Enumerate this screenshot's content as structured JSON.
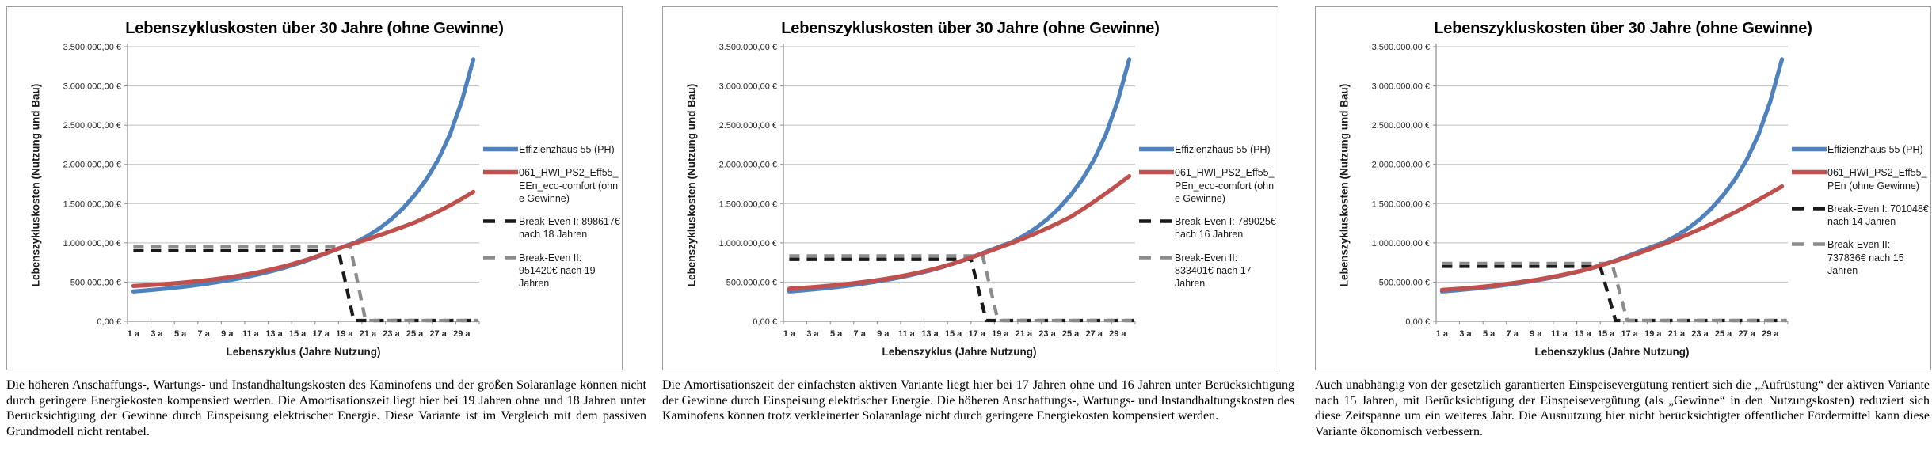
{
  "chart_data": [
    {
      "type": "line",
      "title": "Lebenszykluskosten über 30 Jahre (ohne Gewinne)",
      "y_axis_title": "Lebenszykluskosten (Nutzung und Bau)",
      "x_axis_title": "Lebenszyklus (Jahre Nutzung)",
      "y_max": 3500000,
      "y_ticks": [
        "0,00 €",
        "500.000,00 €",
        "1.000.000,00 €",
        "1.500.000,00 €",
        "2.000.000,00 €",
        "2.500.000,00 €",
        "3.000.000,00 €",
        "3.500.000,00 €"
      ],
      "x_ticks": [
        "1 a",
        "3 a",
        "5 a",
        "7 a",
        "9 a",
        "11 a",
        "13 a",
        "15 a",
        "17 a",
        "19 a",
        "21 a",
        "23 a",
        "25 a",
        "27 a",
        "29 a"
      ],
      "legend_labels": [
        "Effizienzhaus 55 (PH)",
        "061_HWI_PS2_Eff55_EEn_eco-comfort (ohne Gewinne)",
        "Break-Even I: 898617€ nach 18 Jahren",
        "Break-Even II: 951420€ nach 19 Jahren"
      ],
      "series": [
        {
          "name": "Effizienzhaus 55 (PH)",
          "color": "#4F81BD",
          "style": "solid",
          "values": [
            380000,
            392000,
            405000,
            420000,
            436000,
            454000,
            474000,
            496000,
            520000,
            547000,
            577000,
            610000,
            647000,
            688000,
            734000,
            785000,
            840000,
            899000,
            955000,
            1010000,
            1090000,
            1185000,
            1300000,
            1440000,
            1610000,
            1810000,
            2060000,
            2380000,
            2800000,
            3340000
          ]
        },
        {
          "name": "061_HWI_PS2_Eff55_EEn_eco-comfort (ohne Gewinne)",
          "color": "#C0504D",
          "style": "solid",
          "values": [
            450000,
            458000,
            467000,
            478000,
            490000,
            504000,
            520000,
            538000,
            558000,
            581000,
            607000,
            636000,
            669000,
            706000,
            748000,
            795000,
            846000,
            901000,
            952000,
            1000000,
            1048000,
            1098000,
            1150000,
            1204000,
            1260000,
            1328000,
            1400000,
            1477000,
            1560000,
            1650000
          ]
        },
        {
          "name": "Break-Even I",
          "color": "#1a1a1a",
          "style": "dashed",
          "value": 898617,
          "break_year": 18
        },
        {
          "name": "Break-Even II",
          "color": "#8c8c8c",
          "style": "dashed",
          "value": 951420,
          "break_year": 19
        }
      ],
      "caption": "Die höheren Anschaffungs-, Wartungs- und Instandhaltungskosten des Kaminofens und der großen Solaranlage können nicht durch geringere Energiekosten kompensiert werden. Die Amortisationszeit liegt hier bei 19 Jahren ohne und 18 Jahren unter Berücksichtigung der Gewinne durch Einspeisung elektrischer Energie. Diese Variante ist im Vergleich mit dem passiven Grundmodell nicht rentabel."
    },
    {
      "type": "line",
      "title": "Lebenszykluskosten über 30 Jahre (ohne Gewinne)",
      "y_axis_title": "Lebenszykluskosten (Nutzung und Bau)",
      "x_axis_title": "Lebenszyklus (Jahre Nutzung)",
      "y_max": 3500000,
      "y_ticks": [
        "0,00 €",
        "500.000,00 €",
        "1.000.000,00 €",
        "1.500.000,00 €",
        "2.000.000,00 €",
        "2.500.000,00 €",
        "3.000.000,00 €",
        "3.500.000,00 €"
      ],
      "x_ticks": [
        "1 a",
        "3 a",
        "5 a",
        "7 a",
        "9 a",
        "11 a",
        "13 a",
        "15 a",
        "17 a",
        "19 a",
        "21 a",
        "23 a",
        "25 a",
        "27 a",
        "29 a"
      ],
      "legend_labels": [
        "Effizienzhaus 55 (PH)",
        "061_HWI_PS2_Eff55_PEn_eco-comfort (ohne Gewinne)",
        "Break-Even I: 789025€ nach 16 Jahren",
        "Break-Even II: 833401€ nach 17 Jahren"
      ],
      "series": [
        {
          "name": "Effizienzhaus 55 (PH)",
          "color": "#4F81BD",
          "style": "solid",
          "values": [
            380000,
            392000,
            405000,
            420000,
            436000,
            454000,
            474000,
            496000,
            520000,
            547000,
            577000,
            610000,
            647000,
            688000,
            734000,
            785000,
            840000,
            899000,
            955000,
            1010000,
            1090000,
            1185000,
            1300000,
            1440000,
            1610000,
            1810000,
            2060000,
            2380000,
            2800000,
            3340000
          ]
        },
        {
          "name": "061_HWI_PS2_Eff55_PEn_eco-comfort (ohne Gewinne)",
          "color": "#C0504D",
          "style": "solid",
          "values": [
            415000,
            425000,
            436000,
            448000,
            462000,
            477000,
            494000,
            513000,
            535000,
            560000,
            588000,
            620000,
            655000,
            693000,
            737000,
            786000,
            838000,
            890000,
            944000,
            1000000,
            1058000,
            1120000,
            1186000,
            1256000,
            1330000,
            1425000,
            1525000,
            1630000,
            1738000,
            1850000
          ]
        },
        {
          "name": "Break-Even I",
          "color": "#1a1a1a",
          "style": "dashed",
          "value": 789025,
          "break_year": 16
        },
        {
          "name": "Break-Even II",
          "color": "#8c8c8c",
          "style": "dashed",
          "value": 833401,
          "break_year": 17
        }
      ],
      "caption": "Die Amortisationszeit der einfachsten aktiven Variante liegt hier bei 17 Jahren ohne und 16 Jahren unter Berücksichtigung der Gewinne durch Einspeisung elektrischer Energie. Die höheren Anschaffungs-, Wartungs- und Instandhaltungskosten des Kaminofens können trotz verkleinerter Solaranlage nicht durch geringere Energiekosten kompensiert werden."
    },
    {
      "type": "line",
      "title": "Lebenszykluskosten über 30 Jahre (ohne Gewinne)",
      "y_axis_title": "Lebenszykluskosten (Nutzung und Bau)",
      "x_axis_title": "Lebenszyklus (Jahre Nutzung)",
      "y_max": 3500000,
      "y_ticks": [
        "0,00 €",
        "500.000,00 €",
        "1.000.000,00 €",
        "1.500.000,00 €",
        "2.000.000,00 €",
        "2.500.000,00 €",
        "3.000.000,00 €",
        "3.500.000,00 €"
      ],
      "x_ticks": [
        "1 a",
        "3 a",
        "5 a",
        "7 a",
        "9 a",
        "11 a",
        "13 a",
        "15 a",
        "17 a",
        "19 a",
        "21 a",
        "23 a",
        "25 a",
        "27 a",
        "29 a"
      ],
      "legend_labels": [
        "Effizienzhaus 55 (PH)",
        "061_HWI_PS2_Eff55_PEn (ohne Gewinne)",
        "Break-Even I: 701048€ nach 14 Jahren",
        "Break-Even II: 737836€ nach 15 Jahren"
      ],
      "series": [
        {
          "name": "Effizienzhaus 55 (PH)",
          "color": "#4F81BD",
          "style": "solid",
          "values": [
            380000,
            392000,
            405000,
            420000,
            436000,
            454000,
            474000,
            496000,
            520000,
            547000,
            577000,
            610000,
            647000,
            688000,
            734000,
            785000,
            840000,
            899000,
            955000,
            1010000,
            1090000,
            1185000,
            1300000,
            1440000,
            1610000,
            1810000,
            2060000,
            2380000,
            2800000,
            3340000
          ]
        },
        {
          "name": "061_HWI_PS2_Eff55_PEn (ohne Gewinne)",
          "color": "#C0504D",
          "style": "solid",
          "values": [
            400000,
            410000,
            421000,
            434000,
            449000,
            466000,
            486000,
            507000,
            528000,
            554000,
            583000,
            614000,
            649000,
            688000,
            732000,
            778000,
            828000,
            880000,
            935000,
            990000,
            1048000,
            1110000,
            1175000,
            1243000,
            1315000,
            1390000,
            1468000,
            1550000,
            1634000,
            1720000
          ]
        },
        {
          "name": "Break-Even I",
          "color": "#1a1a1a",
          "style": "dashed",
          "value": 701048,
          "break_year": 14
        },
        {
          "name": "Break-Even II",
          "color": "#8c8c8c",
          "style": "dashed",
          "value": 737836,
          "break_year": 15
        }
      ],
      "caption": "Auch unabhängig von der gesetzlich garantierten Einspeisevergütung rentiert sich die „Aufrüstung“ der aktiven Variante nach 15 Jahren, mit Berücksichtigung der Einspeisevergütung (als „Gewinne“ in den Nutzungskosten) reduziert sich diese Zeitspanne um ein weiteres Jahr. Die Ausnutzung hier nicht berücksichtigter öffentlicher Fördermittel kann diese Variante ökonomisch verbessern."
    }
  ],
  "layout_note_colors": {
    "reference_line": "#4F81BD",
    "variant_line": "#C0504D",
    "break_even_I_line": "#1a1a1a",
    "break_even_II_line": "#8c8c8c"
  }
}
